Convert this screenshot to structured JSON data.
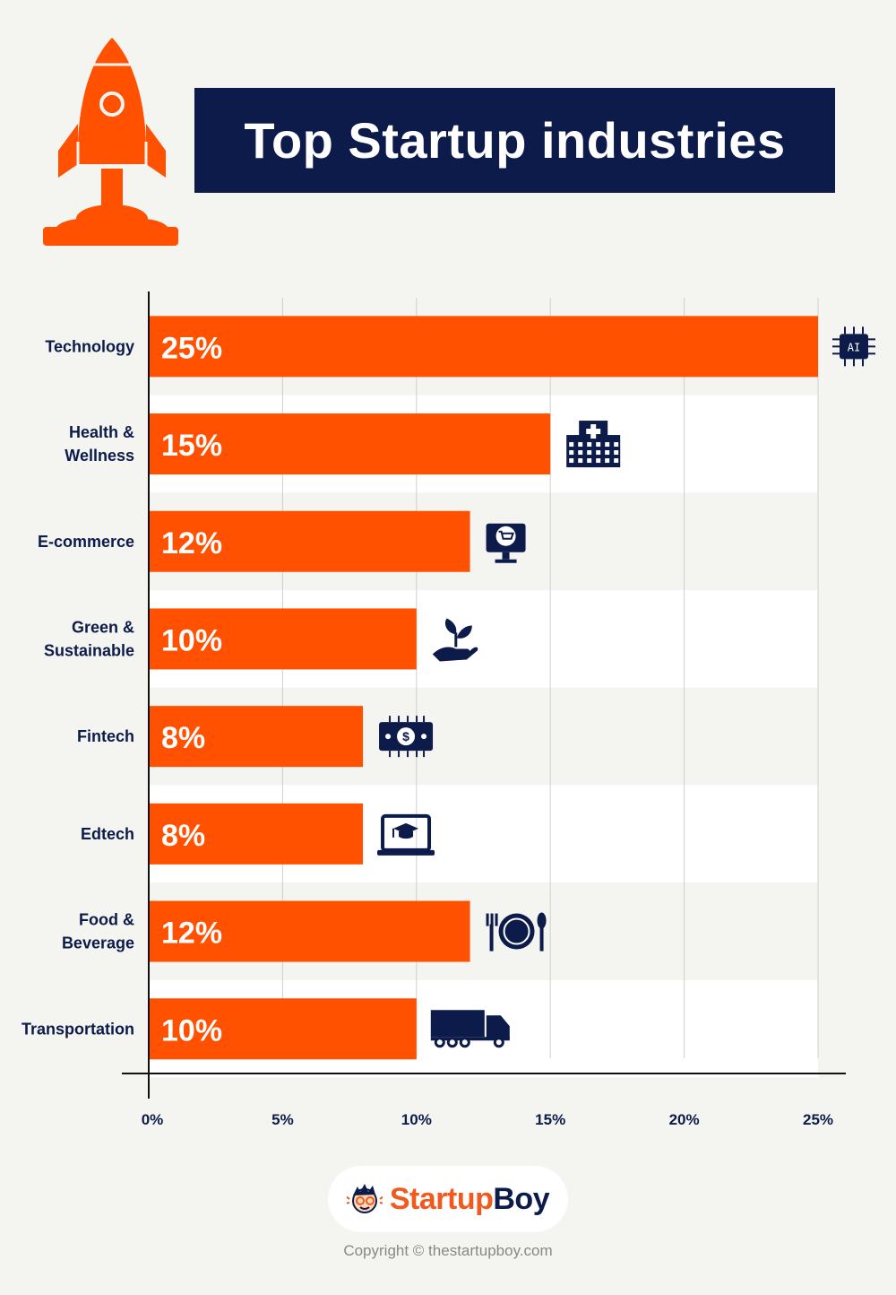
{
  "title": "Top Startup industries",
  "colors": {
    "bar": "#ff5100",
    "navy": "#0c1b4a",
    "background": "#f4f4f0",
    "stripe": "#ffffff"
  },
  "chart_data": {
    "type": "bar",
    "orientation": "horizontal",
    "title": "Top Startup industries",
    "categories": [
      "Technology",
      "Health &\nWellness",
      "E-commerce",
      "Green &\nSustainable",
      "Fintech",
      "Edtech",
      "Food &\nBeverage",
      "Transportation"
    ],
    "values": [
      25,
      15,
      12,
      10,
      8,
      8,
      12,
      10
    ],
    "value_labels": [
      "25%",
      "15%",
      "12%",
      "10%",
      "8%",
      "8%",
      "12%",
      "10%"
    ],
    "icons": [
      "ai-chip-icon",
      "hospital-icon",
      "ecommerce-monitor-icon",
      "plant-hand-icon",
      "fintech-banknote-icon",
      "edtech-laptop-icon",
      "cutlery-plate-icon",
      "truck-icon"
    ],
    "xticks": [
      "0%",
      "5%",
      "10%",
      "15%",
      "20%",
      "25%"
    ],
    "xlim": [
      0,
      25
    ],
    "grid": true
  },
  "logo": {
    "icon": "boy-face-logo-icon",
    "name_part1": "Startup",
    "name_part2": "Boy"
  },
  "copyright": "Copyright © thestartupboy.com"
}
